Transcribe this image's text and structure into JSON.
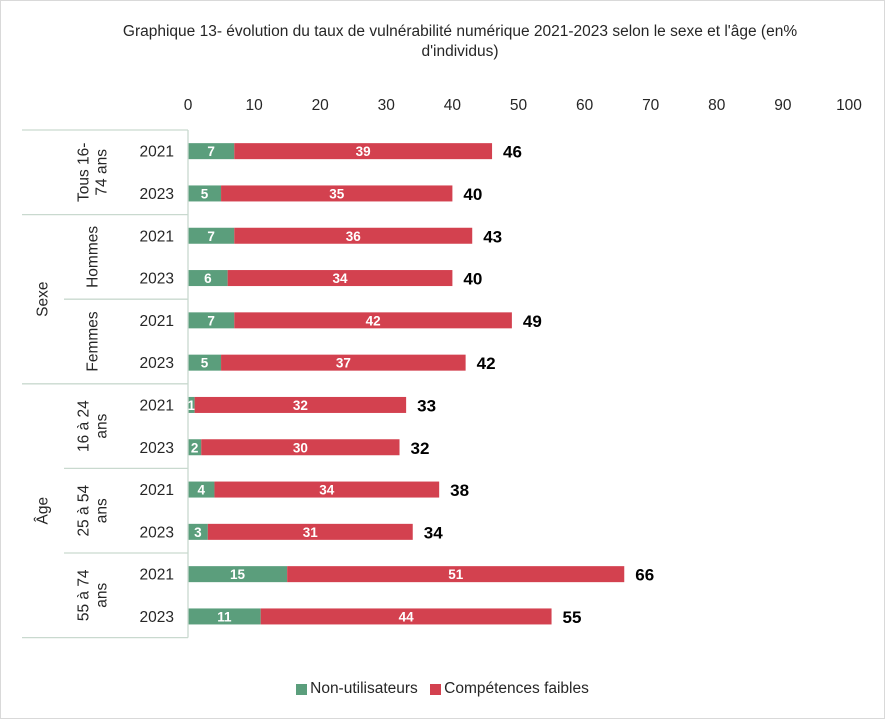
{
  "chart_data": {
    "type": "bar",
    "orientation": "horizontal",
    "stacked": true,
    "title": "Graphique 13- évolution du taux de vulnérabilité numérique 2021-2023 selon le sexe et l'âge (en% d'individus)",
    "xlim": [
      0,
      100
    ],
    "x_ticks": [
      0,
      10,
      20,
      30,
      40,
      50,
      60,
      70,
      80,
      90,
      100
    ],
    "grid": false,
    "legend_position": "bottom",
    "colors": {
      "non_utilisateurs": "#5b9e7c",
      "competences_faibles": "#d3414f"
    },
    "series": [
      {
        "name": "Non-utilisateurs",
        "values": [
          7,
          5,
          7,
          6,
          7,
          5,
          1,
          2,
          4,
          3,
          15,
          11
        ]
      },
      {
        "name": "Compétences faibles",
        "values": [
          39,
          35,
          36,
          34,
          42,
          37,
          32,
          30,
          34,
          31,
          51,
          44
        ]
      }
    ],
    "totals": [
      46,
      40,
      43,
      40,
      49,
      42,
      33,
      32,
      38,
      34,
      66,
      55
    ],
    "years": [
      "2021",
      "2023",
      "2021",
      "2023",
      "2021",
      "2023",
      "2021",
      "2023",
      "2021",
      "2023",
      "2021",
      "2023"
    ],
    "subgroups": [
      {
        "label_lines": [
          "Tous 16-",
          "74 ans"
        ],
        "start": 0,
        "end": 2
      },
      {
        "label_lines": [
          "Hommes"
        ],
        "start": 2,
        "end": 4
      },
      {
        "label_lines": [
          "Femmes"
        ],
        "start": 4,
        "end": 6
      },
      {
        "label_lines": [
          "16 à 24",
          "ans"
        ],
        "start": 6,
        "end": 8
      },
      {
        "label_lines": [
          "25 à 54",
          "ans"
        ],
        "start": 8,
        "end": 10
      },
      {
        "label_lines": [
          "55 à 74",
          "ans"
        ],
        "start": 10,
        "end": 12
      }
    ],
    "groups": [
      {
        "label": "Sexe",
        "start": 2,
        "end": 6
      },
      {
        "label": "Âge",
        "start": 6,
        "end": 12
      }
    ]
  }
}
